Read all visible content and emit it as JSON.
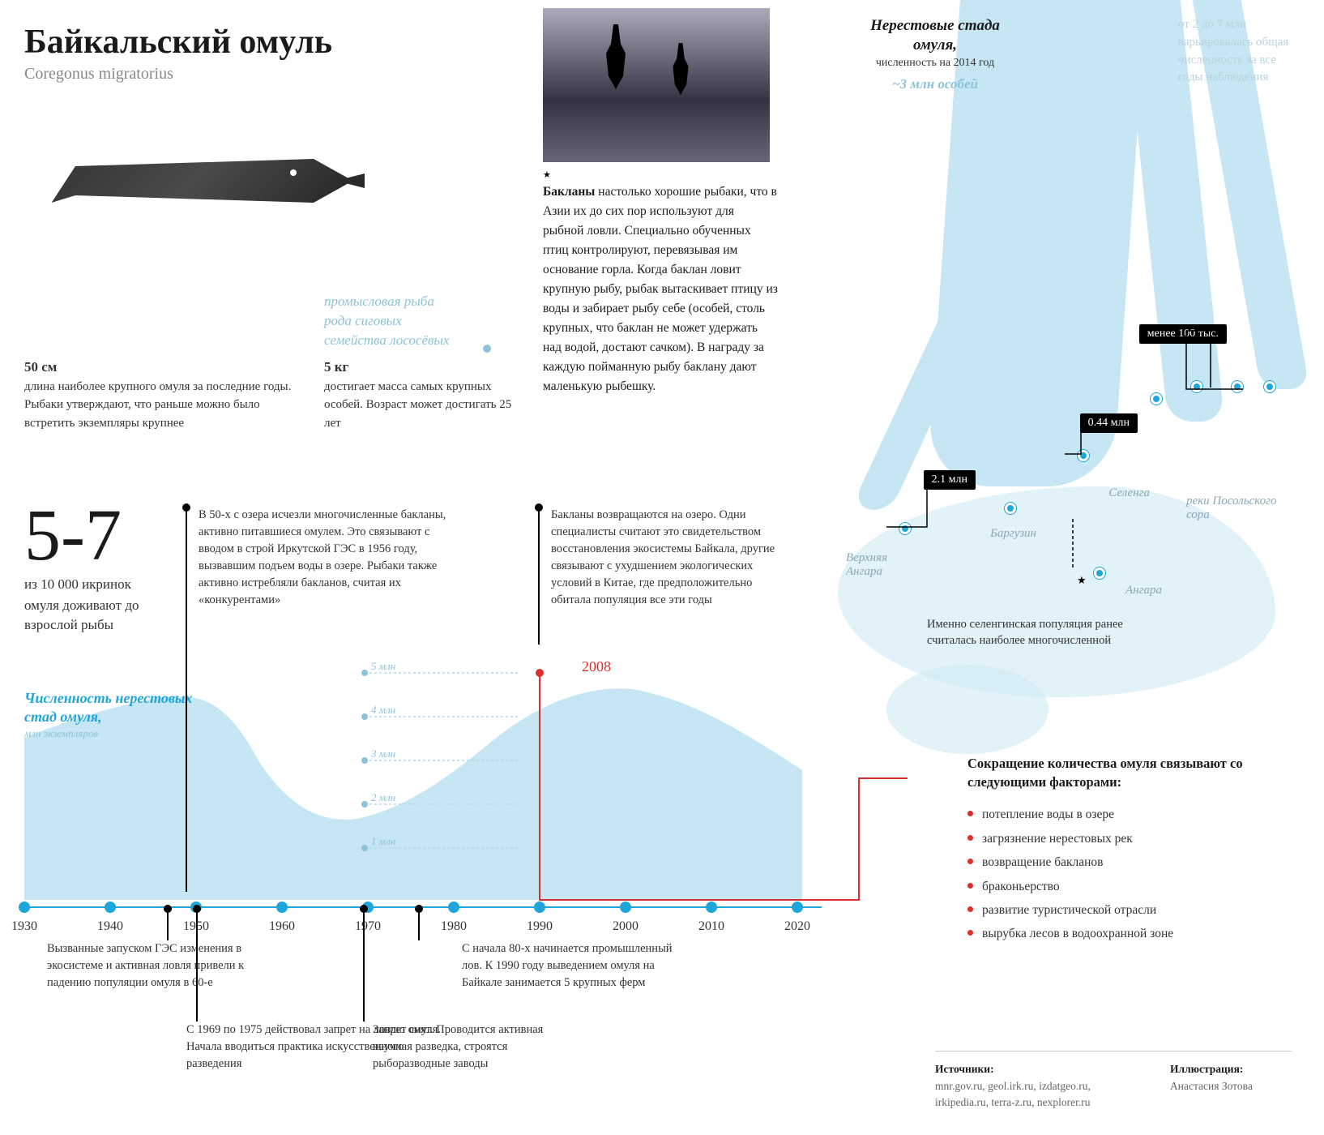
{
  "header": {
    "title": "Байкальский омуль",
    "latin": "Coregonus migratorius"
  },
  "classification": "промысловая рыба\nрода сиговых\nсемейства лососёвых",
  "fact_length": {
    "num": "50 см",
    "text": "длина наиболее крупного омуля за последние годы. Рыбаки утверждают, что раньше можно было встретить экземпляры крупнее"
  },
  "fact_weight": {
    "num": "5 кг",
    "text": "достигает масса самых крупных особей. Возраст может достигать 25 лет"
  },
  "survival": {
    "big": "5-7",
    "sub": "из 10 000 икринок",
    "text": "омуля доживают до взрослой рыбы"
  },
  "cormorant_text": "<b>Бакланы</b> настолько хорошие рыбаки, что в Азии их до сих пор используют для рыбной ловли. Специально обученных птиц контролируют, перевязы­вая им основание горла. Когда баклан ловит крупную рыбу, рыбак вытаскивает птицу из воды и забирает рыбу себе (особей, столь крупных, что баклан не может удержать над водой, достают сачком). В награду за каждую пойман­ную рыбу баклану дают маленькую рыбешку.",
  "chart": {
    "title": "Численность нерестовых стад омуля,",
    "sub": "млн экземпляров",
    "ymax": 5,
    "ytick_step": 1,
    "y_labels": [
      "1 млн",
      "2 млн",
      "3 млн",
      "4 млн",
      "5 млн"
    ],
    "years": [
      1930,
      1940,
      1950,
      1960,
      1970,
      1980,
      1990,
      2000,
      2010,
      2020
    ],
    "area_color": "#c5e6f2",
    "axis_color": "#1ea5d9",
    "values_approx": [
      3.2,
      3.5,
      4.0,
      3.8,
      2.0,
      1.5,
      2.2,
      3.5,
      4.2,
      4.0,
      3.0
    ]
  },
  "timeline_events": {
    "e1950": "В 50-х с озера исчезли многочислен­ные бакланы, активно питавшиеся омулем. Это связывают с вводом в строй Иркутской ГЭС в 1956 году, вызвавшим подъем воды в озере. Рыбаки также активно истребляли бакланов, считая их «конкурентами»",
    "e2008_year": "2008",
    "e2008": "Бакланы возвращаются на озеро. Одни специалисты считают это свидетель­ством восстановления экосистемы Байкала, другие связывают с ухудше­нием экологических условий в Китае, где предположительно обитала популяция все эти годы",
    "e1960": "Вызванные запуском ГЭС изменения в экосистеме и активная ловля привели к падению популяции омуля в 60-е",
    "e1969": "С 1969 по 1975 действовал запрет на ловлю омуля. Начала вводиться практика искусственного разведения",
    "e1978": "Запрет снят. Проводится активная научная разведка, строятся рыборазводные заводы",
    "e1983": "С начала 80-х начинается промышленный лов. К 1990 году выведением омуля на Байкале занимается 5 крупных ферм"
  },
  "right_panel": {
    "head_title": "Нерестовые стада омуля,",
    "head_sub": "численность на 2014 год",
    "head_total": "~3 млн особей",
    "faded": "от 2 до 7 млн варьировалась общая численность за все годы наблюдения",
    "badges": {
      "small": "менее 100 тыс.",
      "mid": "0.44 млн",
      "big": "2.1 млн"
    },
    "rivers": {
      "r1": "Верхняя Ангара",
      "r2": "Баргузин",
      "r3": "Селенга",
      "r4": "реки Посольского сора",
      "r5": "Ангара"
    },
    "selenga_note": "Именно селенгинская популяция ранее считалась наиболее многочисленной"
  },
  "factors": {
    "title": "Сокращение количества омуля связывают со следующими факторами:",
    "items": [
      "потепление воды в озере",
      "загрязнение нерестовых рек",
      "возвращение бакланов",
      "браконьерство",
      "развитие туристической отрасли",
      "вырубка лесов в водоохранной зоне"
    ]
  },
  "sources": {
    "label": "Источники:",
    "list": "mnr.gov.ru, geol.irk.ru, izdatgeo.ru, irkipedia.ru, terra-z.ru, nexplorer.ru",
    "ill_label": "Иллюстрация:",
    "ill_name": "Анастасия Зотова"
  },
  "colors": {
    "accent": "#1ea5d9",
    "pale": "#c5e6f2",
    "red": "#d92f2f"
  }
}
